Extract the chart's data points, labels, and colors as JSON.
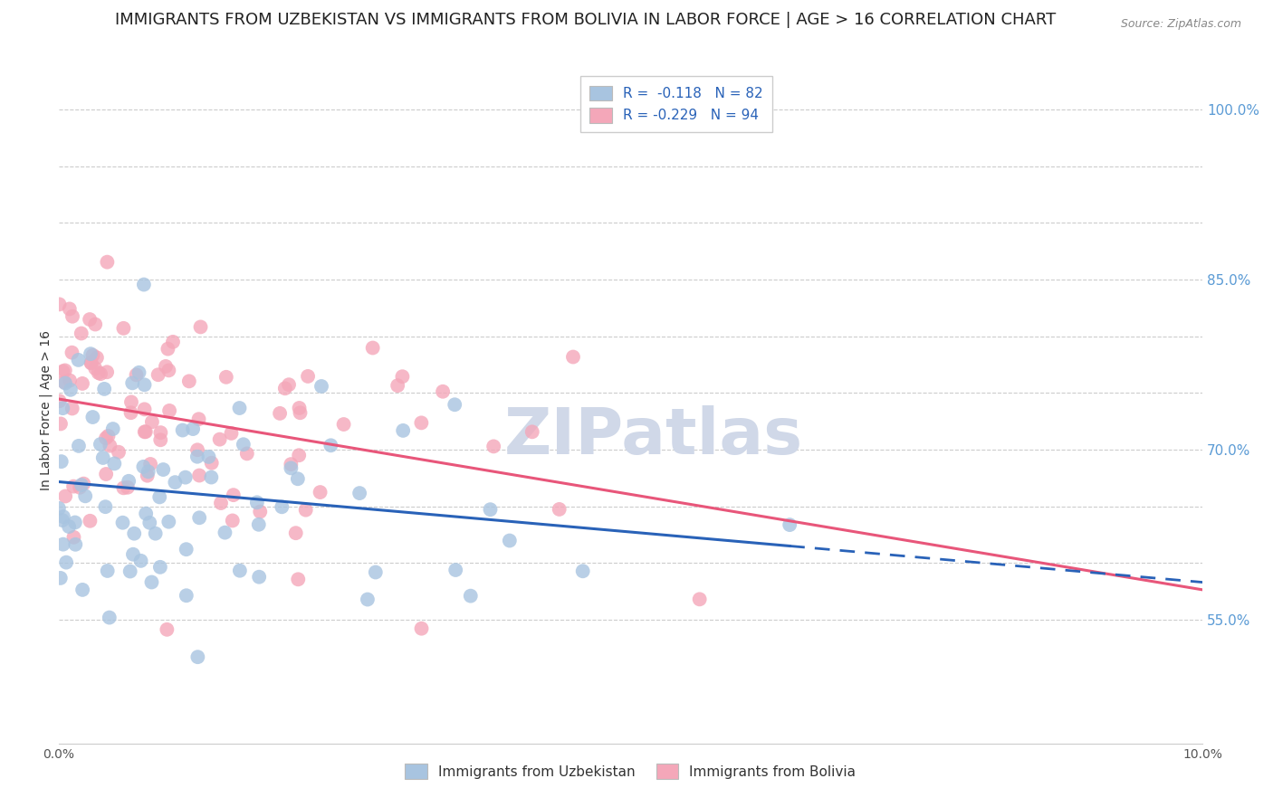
{
  "title": "IMMIGRANTS FROM UZBEKISTAN VS IMMIGRANTS FROM BOLIVIA IN LABOR FORCE | AGE > 16 CORRELATION CHART",
  "source": "Source: ZipAtlas.com",
  "ylabel": "In Labor Force | Age > 16",
  "xmin": 0.0,
  "xmax": 0.1,
  "ymin": 0.44,
  "ymax": 1.03,
  "ytick_positions": [
    0.55,
    0.6,
    0.65,
    0.7,
    0.75,
    0.8,
    0.85,
    0.9,
    0.95,
    1.0
  ],
  "ytick_labels_right": [
    "55.0%",
    "",
    "",
    "70.0%",
    "",
    "",
    "85.0%",
    "",
    "",
    "100.0%"
  ],
  "xticks": [
    0.0,
    0.02,
    0.04,
    0.06,
    0.08,
    0.1
  ],
  "xtick_labels": [
    "0.0%",
    "",
    "",
    "",
    "",
    "10.0%"
  ],
  "uzbekistan_color": "#a8c4e0",
  "bolivia_color": "#f4a7b9",
  "uzbekistan_line_color": "#2962b8",
  "bolivia_line_color": "#e8567a",
  "uzbekistan_R": -0.118,
  "uzbekistan_N": 82,
  "bolivia_R": -0.229,
  "bolivia_N": 94,
  "uzbekistan_seed": 12,
  "bolivia_seed": 99,
  "background_color": "#ffffff",
  "grid_color": "#cccccc",
  "title_fontsize": 13,
  "axis_label_fontsize": 10,
  "tick_fontsize": 10,
  "legend_fontsize": 11,
  "watermark_text": "ZIPatlas",
  "watermark_color": "#d0d8e8",
  "watermark_fontsize": 52,
  "right_tick_color": "#5b9bd5"
}
